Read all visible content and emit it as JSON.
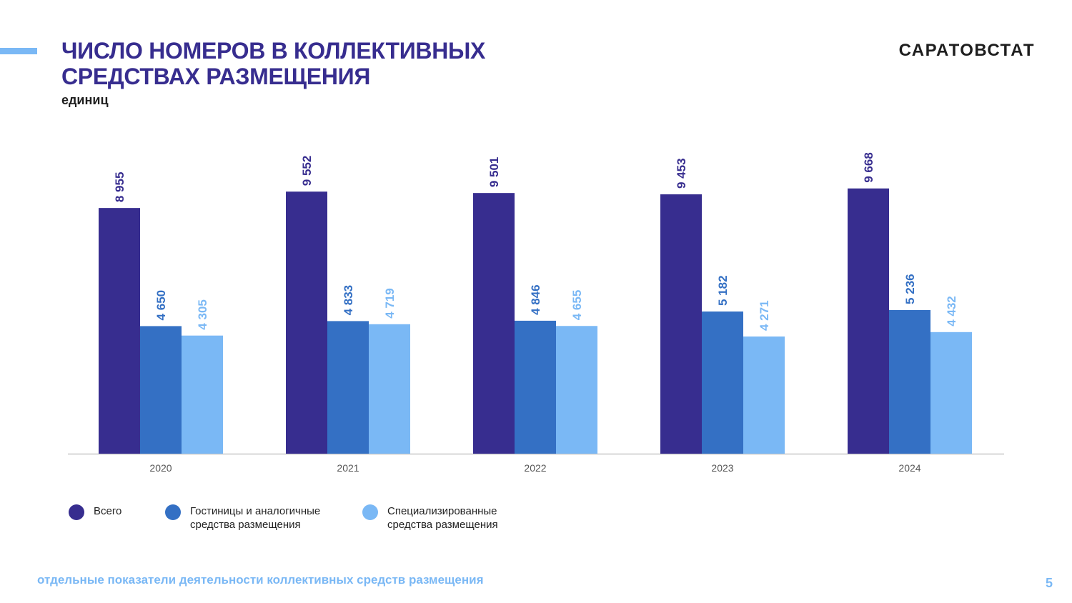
{
  "header": {
    "title_line1": "ЧИСЛО НОМЕРОВ В КОЛЛЕКТИВНЫХ",
    "title_line2": "СРЕДСТВАХ РАЗМЕЩЕНИЯ",
    "unit": "единиц",
    "brand": "САРАТОВСТАТ"
  },
  "footer": {
    "text": "отдельные показатели деятельности коллективных средств размещения",
    "page_number": "5"
  },
  "colors": {
    "accent": "#7ab8f5",
    "title": "#372d8f"
  },
  "chart_data": {
    "type": "bar",
    "categories": [
      "2020",
      "2021",
      "2022",
      "2023",
      "2024"
    ],
    "series": [
      {
        "name": "Всего",
        "color": "#372d8f",
        "values": [
          8955,
          9552,
          9501,
          9453,
          9668
        ],
        "labels": [
          "8 955",
          "9 552",
          "9 501",
          "9 453",
          "9 668"
        ]
      },
      {
        "name": "Гостиницы и аналогичные\nсредства размещения",
        "color": "#3470c4",
        "values": [
          4650,
          4833,
          4846,
          5182,
          5236
        ],
        "labels": [
          "4 650",
          "4 833",
          "4 846",
          "5 182",
          "5 236"
        ]
      },
      {
        "name": "Специализированные\nсредства размещения",
        "color": "#7ab8f5",
        "values": [
          4305,
          4719,
          4655,
          4271,
          4432
        ],
        "labels": [
          "4 305",
          "4 719",
          "4 655",
          "4 271",
          "4 432"
        ]
      }
    ],
    "ylim": [
      0,
      11000
    ],
    "grid": false,
    "legend_position": "bottom-left"
  }
}
